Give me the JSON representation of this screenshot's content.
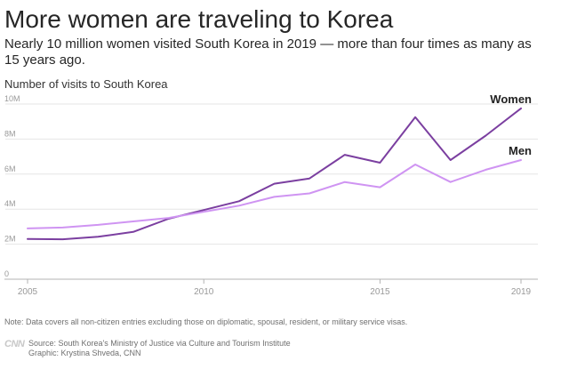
{
  "title": "More women are traveling to Korea",
  "subtitle": "Nearly 10 million women visited South Korea in 2019 — more than four times as many as 15 years ago.",
  "note": "Note: Data covers all non-citizen entries excluding those on diplomatic, spousal, resident, or military service visas.",
  "source": "Source: South Korea's Ministry of Justice via Culture and Tourism Institute",
  "credit": "Graphic: Krystina Shveda, CNN",
  "logo_text": "CNN",
  "colors": {
    "women": "#7b3fa0",
    "men": "#cf94f2",
    "grid": "#e6e6e6",
    "axis": "#b3b3b3",
    "tick": "#999999"
  },
  "chart_data": {
    "type": "line",
    "ylabel": "Number of visits to South Korea",
    "xlabel": "",
    "x": [
      2005,
      2006,
      2007,
      2008,
      2009,
      2010,
      2011,
      2012,
      2013,
      2014,
      2015,
      2016,
      2017,
      2018,
      2019
    ],
    "xlim": [
      2005,
      2019
    ],
    "ylim": [
      0,
      10
    ],
    "xticks": [
      {
        "value": 2005,
        "label": "2005"
      },
      {
        "value": 2010,
        "label": "2010"
      },
      {
        "value": 2015,
        "label": "2015"
      },
      {
        "value": 2019,
        "label": "2019"
      }
    ],
    "yticks": [
      {
        "value": 0,
        "label": "0"
      },
      {
        "value": 2,
        "label": "2M"
      },
      {
        "value": 4,
        "label": "4M"
      },
      {
        "value": 6,
        "label": "6M"
      },
      {
        "value": 8,
        "label": "8M"
      },
      {
        "value": 10,
        "label": "10M"
      }
    ],
    "grid": true,
    "series": [
      {
        "name": "Women",
        "color": "#7b3fa0",
        "values": [
          2.3,
          2.28,
          2.42,
          2.7,
          3.45,
          3.95,
          4.45,
          5.45,
          5.75,
          7.1,
          6.65,
          9.25,
          6.8,
          8.2,
          9.75
        ]
      },
      {
        "name": "Men",
        "color": "#cf94f2",
        "values": [
          2.9,
          2.95,
          3.1,
          3.3,
          3.5,
          3.85,
          4.2,
          4.7,
          4.9,
          5.55,
          5.25,
          6.55,
          5.55,
          6.25,
          6.8
        ]
      }
    ]
  }
}
